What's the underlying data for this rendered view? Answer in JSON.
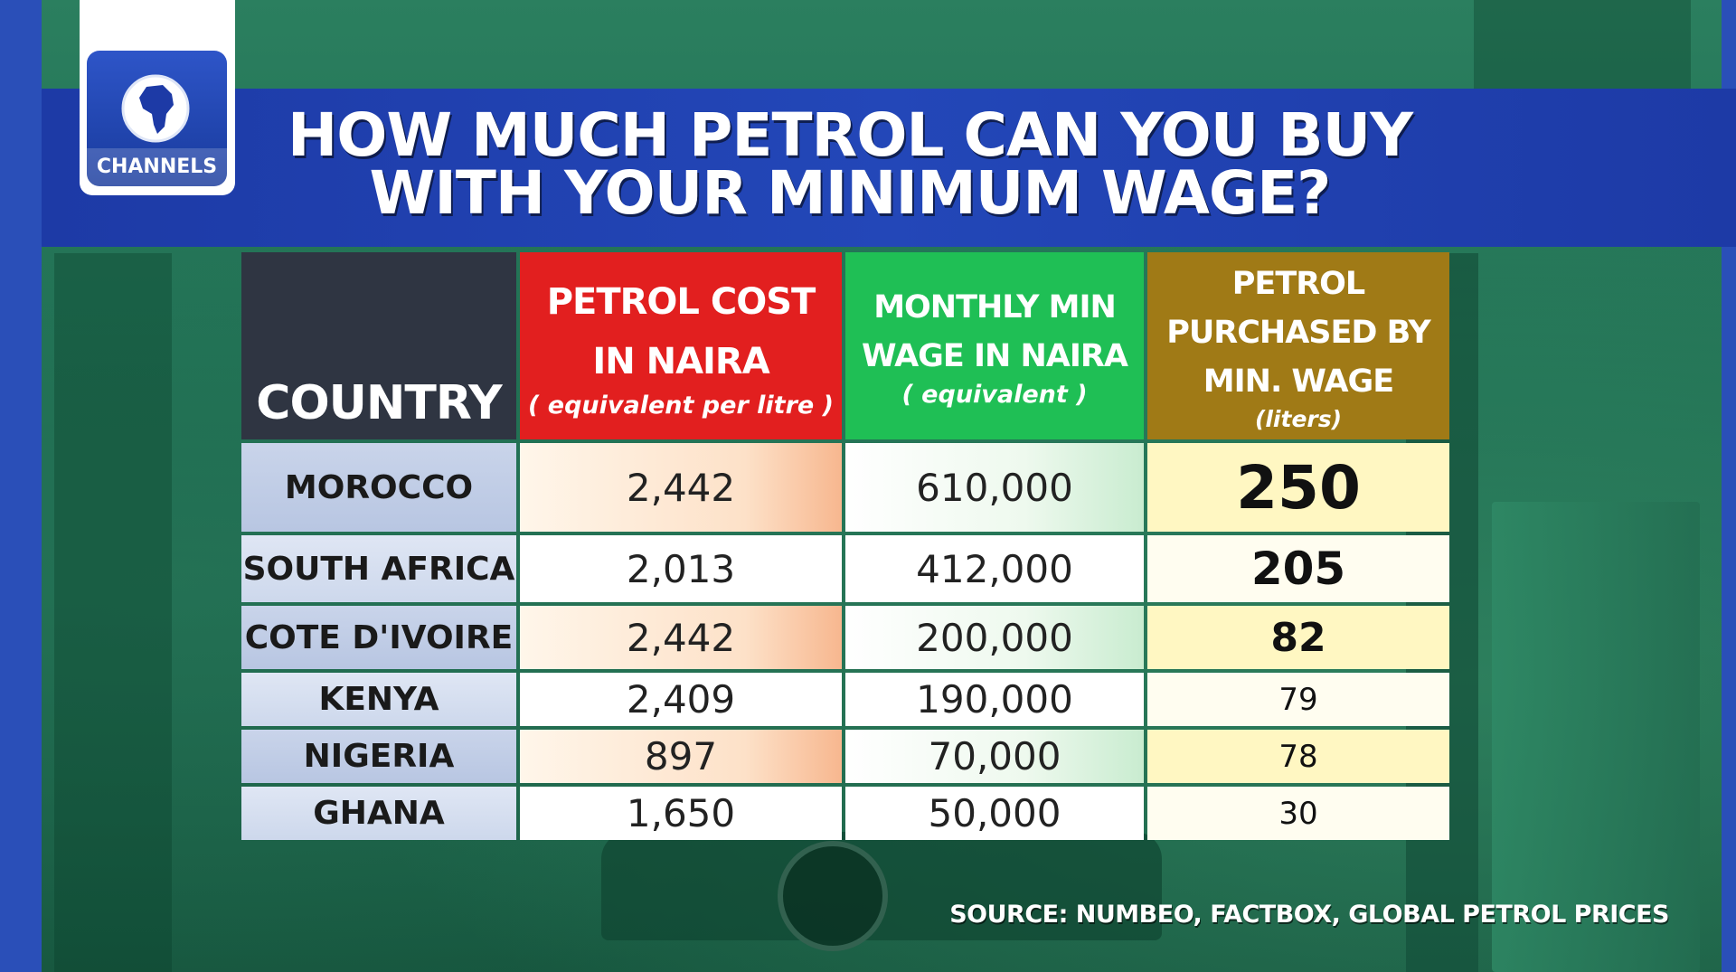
{
  "title": "HOW MUCH PETROL CAN YOU BUY WITH YOUR MINIMUM WAGE?",
  "logo": {
    "text": "CHANNELS",
    "icon": "africa-globe-icon"
  },
  "colors": {
    "band_blue": "#2347b8",
    "header_country": "#2f3542",
    "header_cost": "#e21f1f",
    "header_wage": "#1fbf55",
    "header_litres": "#a07a16"
  },
  "chart_data": {
    "type": "table",
    "title": "HOW MUCH PETROL CAN YOU BUY WITH YOUR MINIMUM WAGE?",
    "columns": [
      {
        "main": "COUNTRY",
        "sub": ""
      },
      {
        "main": "PETROL COST IN NAIRA",
        "sub": "( equivalent per litre )"
      },
      {
        "main": "MONTHLY MIN WAGE IN NAIRA",
        "sub": "( equivalent )"
      },
      {
        "main": "PETROL PURCHASED BY MIN. WAGE",
        "sub": "(liters)"
      }
    ],
    "rows": [
      {
        "country": "MOROCCO",
        "petrol_cost": "2,442",
        "min_wage": "610,000",
        "litres": "250"
      },
      {
        "country": "SOUTH AFRICA",
        "petrol_cost": "2,013",
        "min_wage": "412,000",
        "litres": "205"
      },
      {
        "country": "COTE D'IVOIRE",
        "petrol_cost": "2,442",
        "min_wage": "200,000",
        "litres": "82"
      },
      {
        "country": "KENYA",
        "petrol_cost": "2,409",
        "min_wage": "190,000",
        "litres": "79"
      },
      {
        "country": "NIGERIA",
        "petrol_cost": "897",
        "min_wage": "70,000",
        "litres": "78"
      },
      {
        "country": "GHANA",
        "petrol_cost": "1,650",
        "min_wage": "50,000",
        "litres": "30"
      }
    ]
  },
  "source": "SOURCE: NUMBEO, FACTBOX, GLOBAL PETROL PRICES"
}
